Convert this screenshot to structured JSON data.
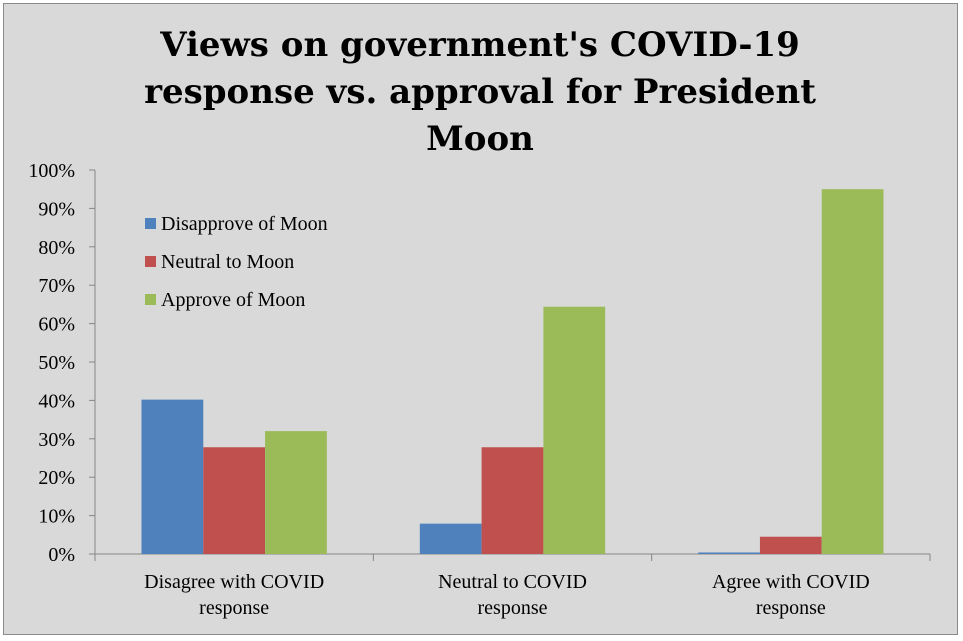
{
  "chart_data": {
    "type": "bar",
    "title": "Views on government's COVID-19 response vs. approval for President Moon",
    "title_lines": [
      "Views on government's COVID-19",
      "response vs. approval for President",
      "Moon"
    ],
    "categories": [
      [
        "Disagree with COVID",
        "response"
      ],
      [
        "Neutral to COVID",
        "response"
      ],
      [
        "Agree with COVID",
        "response"
      ]
    ],
    "series": [
      {
        "name": "Disapprove of Moon",
        "color": "#4f81bd",
        "values": [
          40.2,
          7.9,
          0.4
        ]
      },
      {
        "name": "Neutral to Moon",
        "color": "#c0504d",
        "values": [
          27.8,
          27.8,
          4.5
        ]
      },
      {
        "name": "Approve of Moon",
        "color": "#9bbb59",
        "values": [
          32.0,
          64.4,
          95.0
        ]
      }
    ],
    "ylim": [
      0,
      100
    ],
    "yticks": [
      "0%",
      "10%",
      "20%",
      "30%",
      "40%",
      "50%",
      "60%",
      "70%",
      "80%",
      "90%",
      "100%"
    ],
    "xlabel": "",
    "ylabel": "",
    "legend_position": "top-left inside plot",
    "grid": false
  }
}
